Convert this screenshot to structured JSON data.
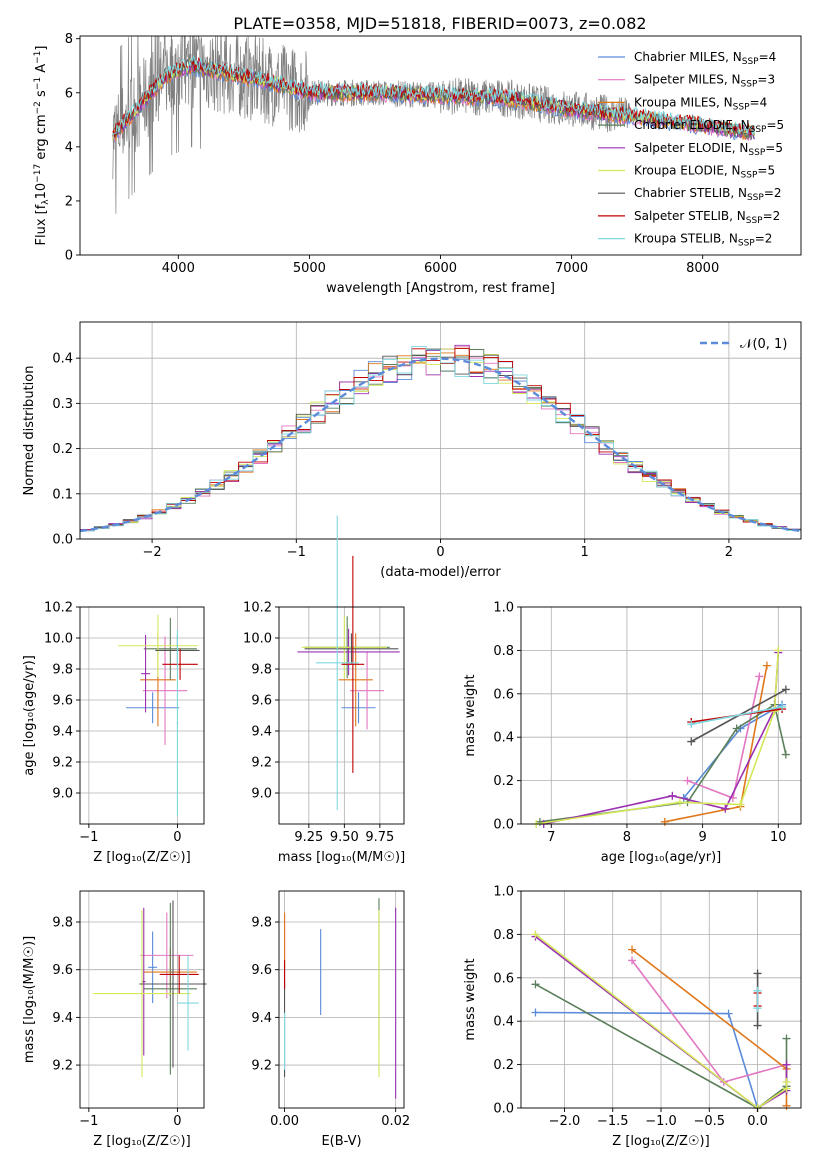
{
  "figure_title": "PLATE=0358, MJD=51818, FIBERID=0073, z=0.082",
  "models": [
    {
      "name": "Chabrier MILES, N_SSP=4",
      "label": "Chabrier MILES, N",
      "sub": "SSP",
      "suffix": "=4",
      "color": "#5b8bd9"
    },
    {
      "name": "Salpeter MILES, N_SSP=3",
      "label": "Salpeter MILES, N",
      "sub": "SSP",
      "suffix": "=3",
      "color": "#e377c2"
    },
    {
      "name": "Kroupa MILES, N_SSP=4",
      "label": "Kroupa MILES, N",
      "sub": "SSP",
      "suffix": "=4",
      "color": "#e0771a"
    },
    {
      "name": "Chabrier ELODIE, N_SSP=5",
      "label": "Chabrier ELODIE, N",
      "sub": "SSP",
      "suffix": "=5",
      "color": "#5a7f5a"
    },
    {
      "name": "Salpeter ELODIE, N_SSP=5",
      "label": "Salpeter ELODIE, N",
      "sub": "SSP",
      "suffix": "=5",
      "color": "#9b30b0"
    },
    {
      "name": "Kroupa ELODIE, N_SSP=5",
      "label": "Kroupa ELODIE, N",
      "sub": "SSP",
      "suffix": "=5",
      "color": "#d4e85a"
    },
    {
      "name": "Chabrier STELIB, N_SSP=2",
      "label": "Chabrier STELIB, N",
      "sub": "SSP",
      "suffix": "=2",
      "color": "#555555"
    },
    {
      "name": "Salpeter STELIB, N_SSP=2",
      "label": "Salpeter STELIB, N",
      "sub": "SSP",
      "suffix": "=2",
      "color": "#c00000"
    },
    {
      "name": "Kroupa STELIB, N_SSP=2",
      "label": "Kroupa STELIB, N",
      "sub": "SSP",
      "suffix": "=2",
      "color": "#7fd8e0"
    }
  ],
  "data_color": "#808080",
  "chart_data": [
    {
      "id": "spectrum",
      "type": "line",
      "xlabel": "wavelength [Angstrom, rest frame]",
      "ylabel_main": "Flux [f",
      "ylabel_sub": "λ",
      "ylabel_rest": "10",
      "ylabel_sup": "−17",
      "ylabel_tail": " erg cm",
      "ylabel_sup2": "−2",
      "ylabel_tail2": " s",
      "ylabel_sup3": "−1",
      "ylabel_tail3": " A",
      "ylabel_sup4": "−1",
      "ylabel_end": "]",
      "xlim": [
        3250,
        8750
      ],
      "ylim": [
        0,
        8.1
      ],
      "xticks": [
        4000,
        5000,
        6000,
        7000,
        8000
      ],
      "yticks": [
        0,
        2,
        4,
        6,
        8
      ],
      "wavelength_range": [
        3500,
        7450
      ],
      "model_range": [
        3500,
        8400
      ],
      "continuum_knots": [
        [
          3500,
          4.4
        ],
        [
          3700,
          5.5
        ],
        [
          3900,
          6.6
        ],
        [
          4100,
          7.0
        ],
        [
          4300,
          6.8
        ],
        [
          4600,
          6.5
        ],
        [
          5000,
          6.0
        ],
        [
          5500,
          6.0
        ],
        [
          6000,
          5.9
        ],
        [
          6500,
          5.8
        ],
        [
          7000,
          5.4
        ],
        [
          7500,
          5.1
        ],
        [
          8000,
          4.8
        ],
        [
          8400,
          4.5
        ]
      ]
    },
    {
      "id": "residuals",
      "type": "histogram",
      "xlabel": "(data-model)/error",
      "ylabel": "Normed distribution",
      "xlim": [
        -2.5,
        2.5
      ],
      "ylim": [
        0,
        0.48
      ],
      "xticks": [
        -2,
        -1,
        0,
        1,
        2
      ],
      "xticklabels": [
        "−2",
        "−1",
        "0",
        "1",
        "2"
      ],
      "yticks": [
        0,
        0.1,
        0.2,
        0.3,
        0.4
      ],
      "yticklabels": [
        "0.0",
        "0.1",
        "0.2",
        "0.3",
        "0.4"
      ],
      "bin_width": 0.1,
      "reference_label": "𝒩(0, 1)",
      "grid": true
    },
    {
      "id": "age_vs_Z",
      "type": "scatter",
      "xlabel": "Z [log₁₀(Z/Z☉)]",
      "ylabel": "age  [log₁₀(age/yr)]",
      "xlim": [
        -1.1,
        0.3
      ],
      "ylim": [
        8.8,
        10.2
      ],
      "xticks": [
        -1,
        0
      ],
      "xticklabels": [
        "−1",
        "0"
      ],
      "yticks": [
        9.0,
        9.2,
        9.4,
        9.6,
        9.8,
        10.0,
        10.2
      ],
      "yticklabels": [
        "9.0",
        "9.2",
        "9.4",
        "9.6",
        "9.8",
        "10.0",
        "10.2"
      ],
      "points": [
        {
          "m": 0,
          "x": -0.28,
          "y": 9.55,
          "xerr": 0.3,
          "yerr": 0.1
        },
        {
          "m": 1,
          "x": -0.14,
          "y": 9.66,
          "xerr": 0.25,
          "yerr": 0.35
        },
        {
          "m": 2,
          "x": -0.22,
          "y": 9.73,
          "xerr": 0.2,
          "yerr": 0.3
        },
        {
          "m": 3,
          "x": -0.08,
          "y": 9.93,
          "xerr": 0.3,
          "yerr": 0.2
        },
        {
          "m": 4,
          "x": -0.36,
          "y": 9.77,
          "xerr": 0.05,
          "yerr": 0.25
        },
        {
          "m": 5,
          "x": -0.22,
          "y": 9.95,
          "xerr": 0.45,
          "yerr": 0.2
        },
        {
          "m": 6,
          "x": 0.0,
          "y": 9.92,
          "xerr": 0.25,
          "yerr": 0.1
        },
        {
          "m": 7,
          "x": 0.03,
          "y": 9.83,
          "xerr": 0.2,
          "yerr": 0.1
        },
        {
          "m": 8,
          "x": 0.0,
          "y": 9.45,
          "xerr": 0.01,
          "yerr": 0.6
        }
      ]
    },
    {
      "id": "age_vs_mass",
      "type": "scatter",
      "xlabel": "mass [log₁₀(M/M☉)]",
      "ylabel": "",
      "xlim": [
        9.04,
        9.92
      ],
      "ylim": [
        8.8,
        10.2
      ],
      "xticks": [
        9.25,
        9.5,
        9.75
      ],
      "xticklabels": [
        "9.25",
        "9.50",
        "9.75"
      ],
      "yticks": [
        9.0,
        9.2,
        9.4,
        9.6,
        9.8,
        10.0,
        10.2
      ],
      "yticklabels": [
        "9.0",
        "9.2",
        "9.4",
        "9.6",
        "9.8",
        "10.0",
        "10.2"
      ],
      "points": [
        {
          "m": 0,
          "x": 9.6,
          "y": 9.55,
          "xerr": 0.12,
          "yerr": 0.1
        },
        {
          "m": 1,
          "x": 9.66,
          "y": 9.66,
          "xerr": 0.12,
          "yerr": 0.25
        },
        {
          "m": 2,
          "x": 9.58,
          "y": 9.73,
          "xerr": 0.12,
          "yerr": 0.3
        },
        {
          "m": 3,
          "x": 9.52,
          "y": 9.94,
          "xerr": 0.3,
          "yerr": 0.2
        },
        {
          "m": 4,
          "x": 9.53,
          "y": 9.91,
          "xerr": 0.36,
          "yerr": 0.15
        },
        {
          "m": 5,
          "x": 9.5,
          "y": 9.94,
          "xerr": 0.3,
          "yerr": 0.2
        },
        {
          "m": 6,
          "x": 9.55,
          "y": 9.93,
          "xerr": 0.33,
          "yerr": 0.1
        },
        {
          "m": 7,
          "x": 9.56,
          "y": 9.83,
          "xerr": 0.08,
          "yerr": 0.7
        },
        {
          "m": 8,
          "x": 9.45,
          "y": 9.84,
          "xerr": 0.15,
          "yerr": 0.95
        }
      ]
    },
    {
      "id": "massweight_vs_age",
      "type": "line",
      "xlabel": "age  [log₁₀(age/yr)]",
      "ylabel": "mass weight",
      "xlim": [
        6.6,
        10.3
      ],
      "ylim": [
        0,
        1
      ],
      "xticks": [
        7,
        8,
        9,
        10
      ],
      "xticklabels": [
        "7",
        "8",
        "9",
        "10"
      ],
      "yticks": [
        0,
        0.2,
        0.4,
        0.6,
        0.8,
        1.0
      ],
      "yticklabels": [
        "0.0",
        "0.2",
        "0.4",
        "0.6",
        "0.8",
        "1.0"
      ],
      "series": [
        {
          "m": 0,
          "x": [
            8.75,
            9.5,
            10.05
          ],
          "y": [
            0.12,
            0.44,
            0.55
          ]
        },
        {
          "m": 1,
          "x": [
            8.8,
            9.4,
            9.75
          ],
          "y": [
            0.2,
            0.12,
            0.68
          ]
        },
        {
          "m": 2,
          "x": [
            8.5,
            9.5,
            9.85
          ],
          "y": [
            0.01,
            0.08,
            0.73
          ]
        },
        {
          "m": 3,
          "x": [
            6.85,
            8.8,
            9.45,
            9.95,
            10.1
          ],
          "y": [
            0.01,
            0.1,
            0.44,
            0.55,
            0.32
          ]
        },
        {
          "m": 4,
          "x": [
            6.9,
            8.6,
            9.3,
            9.95,
            10.0
          ],
          "y": [
            0.0,
            0.13,
            0.07,
            0.53,
            0.79
          ]
        },
        {
          "m": 5,
          "x": [
            6.8,
            8.7,
            9.5,
            9.95,
            10.0
          ],
          "y": [
            0.0,
            0.1,
            0.09,
            0.52,
            0.8
          ]
        },
        {
          "m": 6,
          "x": [
            8.85,
            10.1
          ],
          "y": [
            0.38,
            0.62
          ]
        },
        {
          "m": 7,
          "x": [
            8.85,
            10.05
          ],
          "y": [
            0.47,
            0.53
          ]
        },
        {
          "m": 8,
          "x": [
            8.85,
            10.05
          ],
          "y": [
            0.46,
            0.54
          ]
        }
      ]
    },
    {
      "id": "mass_vs_Z",
      "type": "scatter",
      "xlabel": "Z [log₁₀(Z/Z☉)]",
      "ylabel": "mass [log₁₀(M/M☉)]",
      "xlim": [
        -1.1,
        0.3
      ],
      "ylim": [
        9.02,
        9.93
      ],
      "xticks": [
        -1,
        0
      ],
      "xticklabels": [
        "−1",
        "0"
      ],
      "yticks": [
        9.2,
        9.4,
        9.6,
        9.8
      ],
      "yticklabels": [
        "9.2",
        "9.4",
        "9.6",
        "9.8"
      ],
      "points": [
        {
          "m": 0,
          "x": -0.28,
          "y": 9.61,
          "xerr": 0.05,
          "yerr": 0.15
        },
        {
          "m": 1,
          "x": -0.12,
          "y": 9.66,
          "xerr": 0.3,
          "yerr": 0.18
        },
        {
          "m": 2,
          "x": -0.08,
          "y": 9.59,
          "xerr": 0.3,
          "yerr": 0.1
        },
        {
          "m": 3,
          "x": -0.08,
          "y": 9.52,
          "xerr": 0.3,
          "yerr": 0.36
        },
        {
          "m": 4,
          "x": -0.38,
          "y": 9.55,
          "xerr": 0.02,
          "yerr": 0.31
        },
        {
          "m": 5,
          "x": -0.4,
          "y": 9.5,
          "xerr": 0.55,
          "yerr": 0.35
        },
        {
          "m": 6,
          "x": -0.05,
          "y": 9.54,
          "xerr": 0.38,
          "yerr": 0.35
        },
        {
          "m": 7,
          "x": 0.02,
          "y": 9.58,
          "xerr": 0.22,
          "yerr": 0.08
        },
        {
          "m": 8,
          "x": 0.12,
          "y": 9.46,
          "xerr": 0.12,
          "yerr": 0.2
        }
      ]
    },
    {
      "id": "mass_vs_EBV",
      "type": "scatter",
      "xlabel": "E(B-V)",
      "ylabel": "",
      "xlim": [
        -0.001,
        0.0215
      ],
      "ylim": [
        9.02,
        9.93
      ],
      "xticks": [
        0,
        0.02
      ],
      "xticklabels": [
        "0.00",
        "0.02"
      ],
      "yticks": [
        9.2,
        9.4,
        9.6,
        9.8
      ],
      "yticklabels": [
        "9.2",
        "9.4",
        "9.6",
        "9.8"
      ],
      "points": [
        {
          "m": 0,
          "x": 0.0065,
          "y": 9.59,
          "xerr": 0,
          "yerr": 0.18
        },
        {
          "m": 1,
          "x": 0.0,
          "y": 9.68,
          "xerr": 0,
          "yerr": 0.15
        },
        {
          "m": 2,
          "x": 0.0,
          "y": 9.72,
          "xerr": 0,
          "yerr": 0.12
        },
        {
          "m": 3,
          "x": 0.017,
          "y": 9.6,
          "xerr": 0,
          "yerr": 0.3
        },
        {
          "m": 4,
          "x": 0.02,
          "y": 9.46,
          "xerr": 0,
          "yerr": 0.4
        },
        {
          "m": 5,
          "x": 0.017,
          "y": 9.5,
          "xerr": 0,
          "yerr": 0.35
        },
        {
          "m": 6,
          "x": 0.0,
          "y": 9.35,
          "xerr": 0,
          "yerr": 0.2
        },
        {
          "m": 7,
          "x": 0.0,
          "y": 9.58,
          "xerr": 0,
          "yerr": 0.06
        },
        {
          "m": 8,
          "x": 0.0,
          "y": 9.3,
          "xerr": 0,
          "yerr": 0.12
        }
      ]
    },
    {
      "id": "massweight_vs_Z",
      "type": "line",
      "xlabel": "Z [log₁₀(Z/Z☉)]",
      "ylabel": "mass weight",
      "xlim": [
        -2.45,
        0.45
      ],
      "ylim": [
        0,
        1
      ],
      "xticks": [
        -2,
        -1.5,
        -1,
        -0.5,
        0
      ],
      "xticklabels": [
        "−2.0",
        "−1.5",
        "−1.0",
        "−0.5",
        "0.0"
      ],
      "yticks": [
        0,
        0.2,
        0.4,
        0.6,
        0.8,
        1.0
      ],
      "yticklabels": [
        "0.0",
        "0.2",
        "0.4",
        "0.6",
        "0.8",
        "1.0"
      ],
      "series": [
        {
          "m": 0,
          "x": [
            -2.3,
            -0.3,
            0.0
          ],
          "y": [
            0.44,
            0.435,
            0.0
          ]
        },
        {
          "m": 1,
          "x": [
            -1.3,
            -0.35,
            0.3
          ],
          "y": [
            0.68,
            0.12,
            0.2
          ]
        },
        {
          "m": 2,
          "x": [
            -1.3,
            0.3,
            0.3
          ],
          "y": [
            0.73,
            0.18,
            0.01
          ]
        },
        {
          "m": 3,
          "x": [
            -2.3,
            0.0,
            0.3,
            0.3
          ],
          "y": [
            0.57,
            0.0,
            0.1,
            0.32
          ]
        },
        {
          "m": 4,
          "x": [
            -2.3,
            0.0,
            0.3,
            0.3
          ],
          "y": [
            0.79,
            0.0,
            0.08,
            0.2
          ]
        },
        {
          "m": 5,
          "x": [
            -2.3,
            0.0,
            0.3,
            0.3
          ],
          "y": [
            0.8,
            0.0,
            0.09,
            0.12
          ]
        },
        {
          "m": 6,
          "x": [
            0.0,
            0.0
          ],
          "y": [
            0.38,
            0.62
          ]
        },
        {
          "m": 7,
          "x": [
            0.0,
            0.0
          ],
          "y": [
            0.47,
            0.53
          ]
        },
        {
          "m": 8,
          "x": [
            0.0,
            0.0
          ],
          "y": [
            0.46,
            0.54
          ]
        }
      ]
    }
  ]
}
